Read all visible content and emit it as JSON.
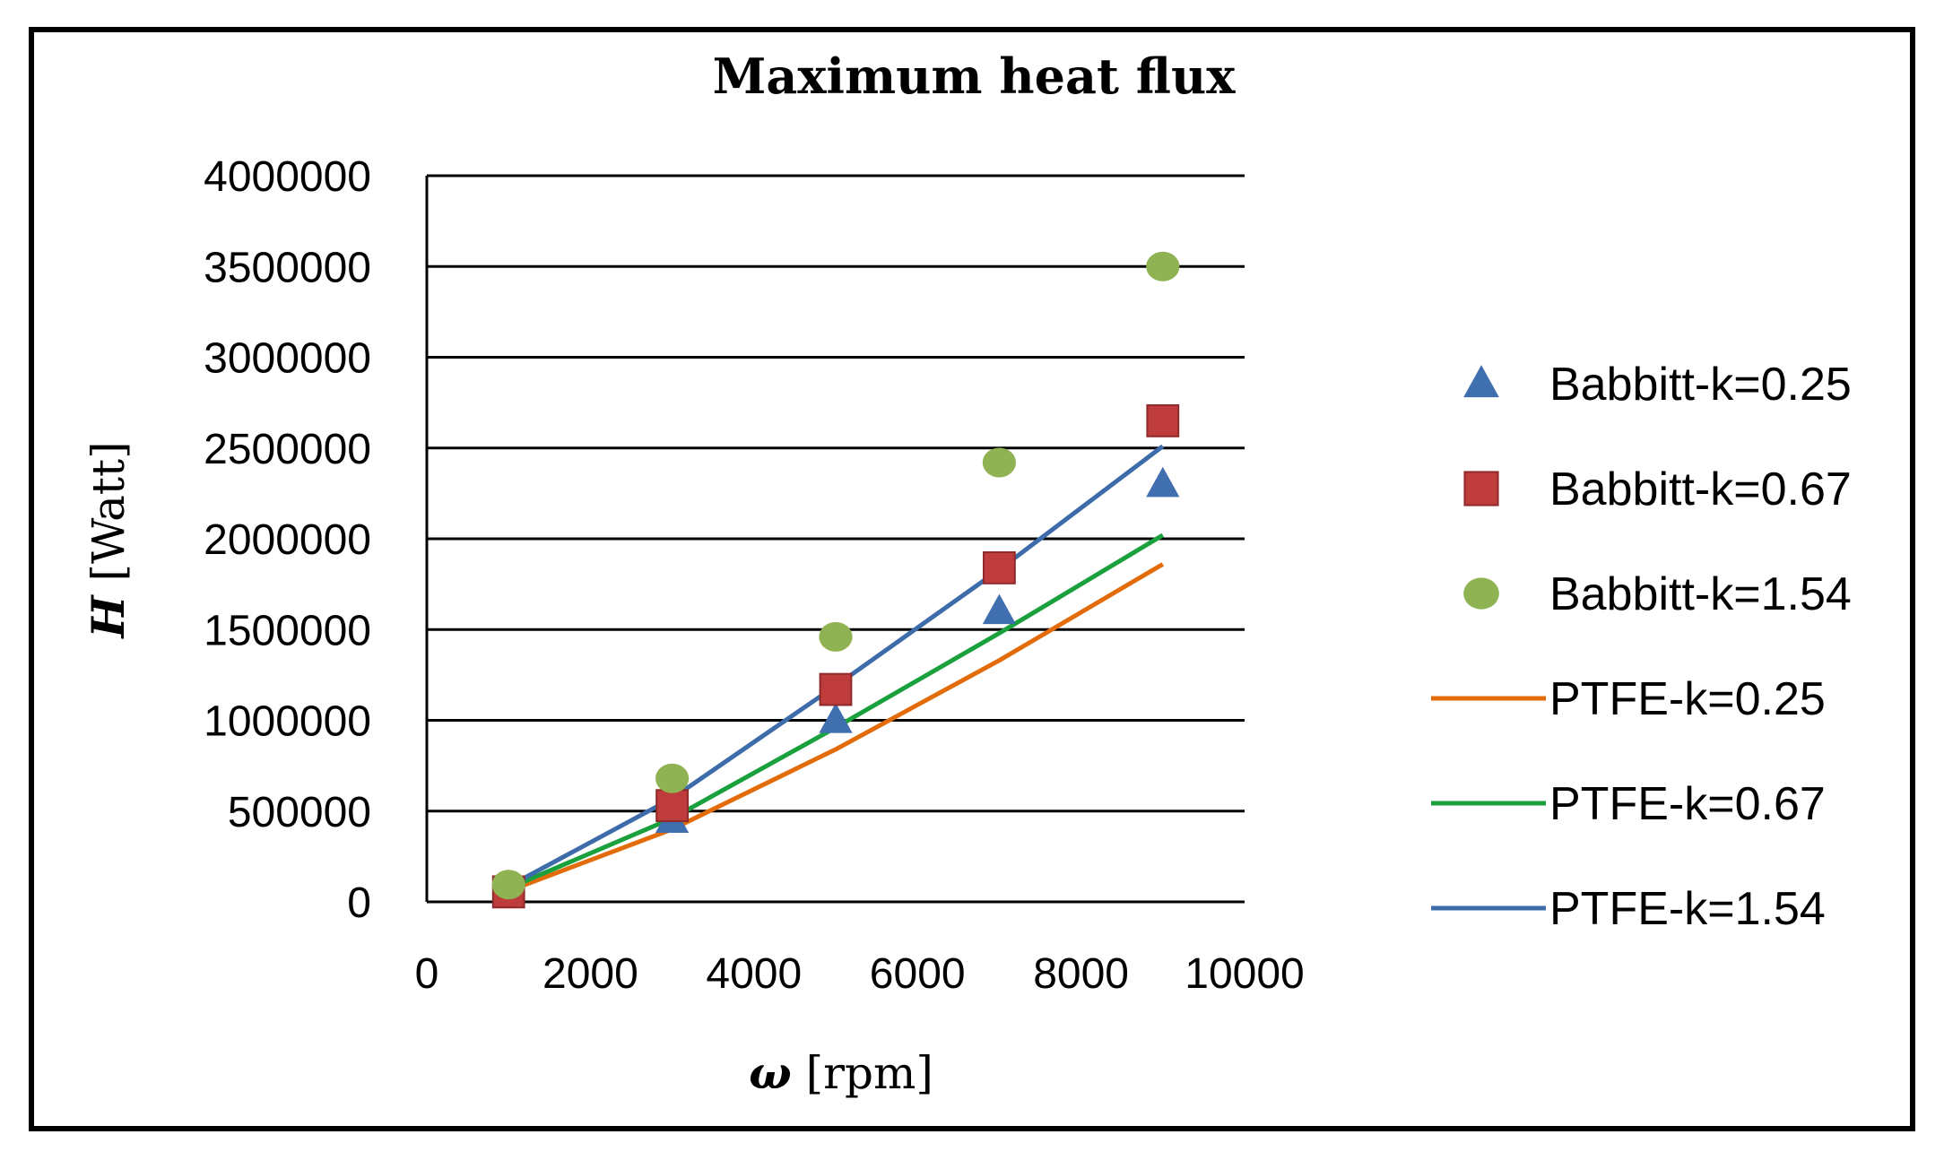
{
  "chart_data": {
    "type": "scatter",
    "title": "Maximum heat flux",
    "xlabel_symbol": "ω",
    "xlabel_unit": "[rpm]",
    "ylabel_symbol": "H",
    "ylabel_unit": "[Watt]",
    "xlim": [
      0,
      10000
    ],
    "ylim": [
      0,
      4000000
    ],
    "x_ticks": [
      0,
      2000,
      4000,
      6000,
      8000,
      10000
    ],
    "y_ticks": [
      0,
      500000,
      1000000,
      1500000,
      2000000,
      2500000,
      3000000,
      3500000,
      4000000
    ],
    "grid": "horizontal",
    "legend_position": "right",
    "series": [
      {
        "name": "Babbitt-k=0.25",
        "kind": "marker",
        "marker": "triangle",
        "color": "#3f6fae",
        "x": [
          1000,
          3000,
          5000,
          7000,
          9000
        ],
        "y": [
          70000,
          450000,
          1000000,
          1600000,
          2300000
        ]
      },
      {
        "name": "Babbitt-k=0.67",
        "kind": "marker",
        "marker": "square",
        "color": "#be3c3c",
        "x": [
          1000,
          3000,
          5000,
          7000,
          9000
        ],
        "y": [
          55000,
          530000,
          1170000,
          1840000,
          2650000
        ]
      },
      {
        "name": "Babbitt-k=1.54",
        "kind": "marker",
        "marker": "circle",
        "color": "#8fb253",
        "x": [
          1000,
          3000,
          5000,
          7000,
          9000
        ],
        "y": [
          95000,
          680000,
          1460000,
          2420000,
          3500000
        ]
      },
      {
        "name": "PTFE-k=0.25",
        "kind": "line",
        "color": "#e36c0a",
        "x": [
          1000,
          3000,
          5000,
          7000,
          9000
        ],
        "y": [
          60000,
          400000,
          840000,
          1330000,
          1860000
        ]
      },
      {
        "name": "PTFE-k=0.67",
        "kind": "line",
        "color": "#1aa03c",
        "x": [
          1000,
          3000,
          5000,
          7000,
          9000
        ],
        "y": [
          75000,
          460000,
          960000,
          1480000,
          2020000
        ]
      },
      {
        "name": "PTFE-k=1.54",
        "kind": "line",
        "color": "#3e6cab",
        "x": [
          1000,
          3000,
          5000,
          7000,
          9000
        ],
        "y": [
          85000,
          570000,
          1190000,
          1830000,
          2510000
        ]
      }
    ]
  }
}
